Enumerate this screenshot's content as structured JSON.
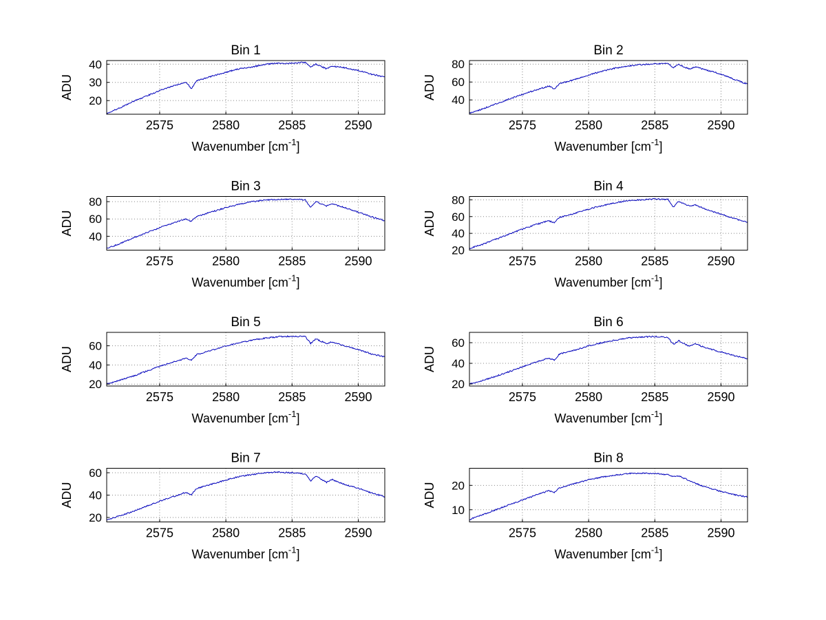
{
  "colors": {
    "background": "#ffffff",
    "line": "#0000bb",
    "grid": "#848484",
    "axis": "#000000"
  },
  "chart_data": [
    {
      "type": "line",
      "title": "Bin 1",
      "xlabel": "Wavenumber [cm^-1]",
      "ylabel": "ADU",
      "xlim": [
        2571,
        2592
      ],
      "ylim": [
        12.5,
        42
      ],
      "xticks": [
        2575,
        2580,
        2585,
        2590
      ],
      "yticks": [
        20,
        30,
        40
      ],
      "grid": true,
      "legend": "none",
      "x": [
        2571,
        2572,
        2573,
        2574,
        2575,
        2576,
        2577,
        2577.4,
        2577.8,
        2579,
        2580,
        2581,
        2582,
        2583,
        2584,
        2585,
        2586,
        2586.4,
        2586.8,
        2587.6,
        2588,
        2589,
        2590,
        2591,
        2592
      ],
      "y": [
        13,
        16,
        19.5,
        22.5,
        25.5,
        28,
        30,
        26.5,
        31,
        33.5,
        35.5,
        37.5,
        38.5,
        40,
        40.5,
        40.5,
        41,
        38.5,
        40,
        37.5,
        39,
        38,
        36.5,
        34.5,
        33
      ]
    },
    {
      "type": "line",
      "title": "Bin 2",
      "xlabel": "Wavenumber [cm^-1]",
      "ylabel": "ADU",
      "xlim": [
        2571,
        2592
      ],
      "ylim": [
        24,
        84
      ],
      "xticks": [
        2575,
        2580,
        2585,
        2590
      ],
      "yticks": [
        40,
        60,
        80
      ],
      "grid": true,
      "legend": "none",
      "x": [
        2571,
        2572,
        2573,
        2574,
        2575,
        2576,
        2577,
        2577.4,
        2577.8,
        2579,
        2580,
        2581,
        2582,
        2583,
        2584,
        2585,
        2586,
        2586.4,
        2586.8,
        2587.6,
        2588,
        2589,
        2590,
        2591,
        2592
      ],
      "y": [
        25,
        30,
        35.5,
        41,
        46,
        51,
        55.5,
        52,
        58,
        63,
        68,
        72,
        75.5,
        78,
        79.5,
        80.5,
        81,
        76,
        79.5,
        74.5,
        77,
        73,
        69,
        63,
        57.5
      ]
    },
    {
      "type": "line",
      "title": "Bin 3",
      "xlabel": "Wavenumber [cm^-1]",
      "ylabel": "ADU",
      "xlim": [
        2571,
        2592
      ],
      "ylim": [
        24,
        86
      ],
      "xticks": [
        2575,
        2580,
        2585,
        2590
      ],
      "yticks": [
        40,
        60,
        80
      ],
      "grid": true,
      "legend": "none",
      "x": [
        2571,
        2572,
        2573,
        2574,
        2575,
        2576,
        2577,
        2577.4,
        2577.8,
        2579,
        2580,
        2581,
        2582,
        2583,
        2584,
        2585,
        2586,
        2586.4,
        2586.8,
        2587.6,
        2588,
        2589,
        2590,
        2591,
        2592
      ],
      "y": [
        26,
        31.5,
        38,
        44,
        50,
        55,
        60,
        57,
        63,
        68.5,
        73,
        77,
        80,
        82,
        82.5,
        83,
        82,
        73.5,
        80,
        75,
        77.5,
        73,
        68,
        62.5,
        58
      ]
    },
    {
      "type": "line",
      "title": "Bin 4",
      "xlabel": "Wavenumber [cm^-1]",
      "ylabel": "ADU",
      "xlim": [
        2571,
        2592
      ],
      "ylim": [
        20,
        84
      ],
      "xticks": [
        2575,
        2580,
        2585,
        2590
      ],
      "yticks": [
        20,
        40,
        60,
        80
      ],
      "grid": true,
      "legend": "none",
      "x": [
        2571,
        2572,
        2573,
        2574,
        2575,
        2576,
        2577,
        2577.4,
        2577.8,
        2579,
        2580,
        2581,
        2582,
        2583,
        2584,
        2585,
        2586,
        2586.4,
        2586.8,
        2587.6,
        2588,
        2589,
        2590,
        2591,
        2592
      ],
      "y": [
        22,
        27,
        33,
        39,
        45,
        50.5,
        55,
        52.5,
        59,
        64,
        69,
        73,
        76.5,
        79,
        80,
        81,
        80.5,
        71.5,
        78,
        72.5,
        74,
        68,
        63,
        57.5,
        53.5
      ]
    },
    {
      "type": "line",
      "title": "Bin 5",
      "xlabel": "Wavenumber [cm^-1]",
      "ylabel": "ADU",
      "xlim": [
        2571,
        2592
      ],
      "ylim": [
        18,
        74
      ],
      "xticks": [
        2575,
        2580,
        2585,
        2590
      ],
      "yticks": [
        20,
        40,
        60
      ],
      "grid": true,
      "legend": "none",
      "x": [
        2571,
        2572,
        2573,
        2574,
        2575,
        2576,
        2577,
        2577.4,
        2577.8,
        2579,
        2580,
        2581,
        2582,
        2583,
        2584,
        2585,
        2586,
        2586.4,
        2586.8,
        2587.6,
        2588,
        2589,
        2590,
        2591,
        2592
      ],
      "y": [
        20,
        24,
        28.5,
        33.5,
        38.5,
        43,
        47,
        45,
        51,
        55.5,
        60,
        63,
        66,
        68,
        69.5,
        70,
        69.5,
        62.5,
        67,
        62.5,
        64,
        60,
        56,
        51.5,
        48.5
      ]
    },
    {
      "type": "line",
      "title": "Bin 6",
      "xlabel": "Wavenumber [cm^-1]",
      "ylabel": "ADU",
      "xlim": [
        2571,
        2592
      ],
      "ylim": [
        18,
        70
      ],
      "xticks": [
        2575,
        2580,
        2585,
        2590
      ],
      "yticks": [
        20,
        40,
        60
      ],
      "grid": true,
      "legend": "none",
      "x": [
        2571,
        2572,
        2573,
        2574,
        2575,
        2576,
        2577,
        2577.4,
        2577.8,
        2579,
        2580,
        2581,
        2582,
        2583,
        2584,
        2585,
        2586,
        2586.4,
        2586.8,
        2587.6,
        2588,
        2589,
        2590,
        2591,
        2592
      ],
      "y": [
        20,
        23.5,
        27.5,
        32,
        36.5,
        41,
        45,
        43,
        49,
        53,
        57,
        60,
        62.5,
        64.5,
        65.5,
        66,
        65,
        58.5,
        62,
        56.5,
        59,
        54.5,
        51,
        47.5,
        44.5
      ]
    },
    {
      "type": "line",
      "title": "Bin 7",
      "xlabel": "Wavenumber [cm^-1]",
      "ylabel": "ADU",
      "xlim": [
        2571,
        2592
      ],
      "ylim": [
        16,
        64
      ],
      "xticks": [
        2575,
        2580,
        2585,
        2590
      ],
      "yticks": [
        20,
        40,
        60
      ],
      "grid": true,
      "legend": "none",
      "x": [
        2571,
        2572,
        2573,
        2574,
        2575,
        2576,
        2577,
        2577.4,
        2577.8,
        2579,
        2580,
        2581,
        2582,
        2583,
        2584,
        2585,
        2586,
        2586.4,
        2586.8,
        2587.6,
        2588,
        2589,
        2590,
        2591,
        2592
      ],
      "y": [
        18,
        21.5,
        25.5,
        30,
        34.5,
        38.5,
        42.5,
        40.5,
        46,
        50,
        53.5,
        56.5,
        58.5,
        60,
        60.5,
        60,
        59,
        52.5,
        57,
        51.5,
        54,
        49.5,
        46,
        42,
        38.5
      ]
    },
    {
      "type": "line",
      "title": "Bin 8",
      "xlabel": "Wavenumber [cm^-1]",
      "ylabel": "ADU",
      "xlim": [
        2571,
        2592
      ],
      "ylim": [
        5,
        27
      ],
      "xticks": [
        2575,
        2580,
        2585,
        2590
      ],
      "yticks": [
        10,
        20
      ],
      "grid": true,
      "legend": "none",
      "x": [
        2571,
        2572,
        2573,
        2574,
        2575,
        2576,
        2577,
        2577.4,
        2577.8,
        2579,
        2580,
        2581,
        2582,
        2583,
        2584,
        2585,
        2586,
        2586.4,
        2586.8,
        2587.6,
        2588,
        2589,
        2590,
        2591,
        2592
      ],
      "y": [
        6,
        8,
        10,
        12,
        14,
        16,
        17.8,
        17,
        19,
        20.8,
        22.3,
        23.4,
        24.2,
        24.8,
        25,
        24.8,
        24.3,
        23.6,
        23.9,
        22,
        21,
        19,
        17.5,
        16.2,
        15.2
      ]
    }
  ]
}
